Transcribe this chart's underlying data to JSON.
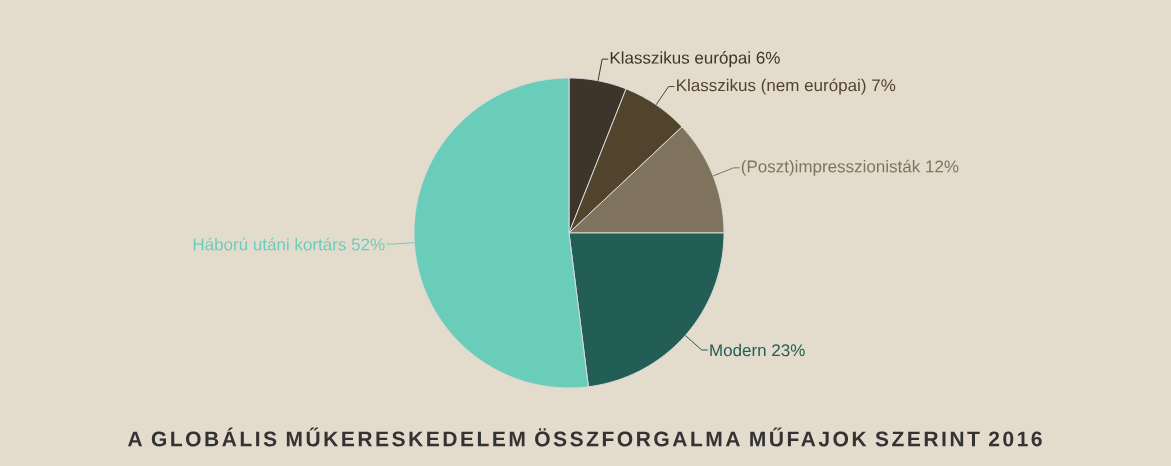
{
  "chart_data": {
    "type": "pie",
    "title": "A GLOBÁLIS MŰKERESKEDELEM ÖSSZFORGALMA MŰFAJOK SZERINT 2016",
    "categories": [
      "Klasszikus európai",
      "Klasszikus (nem európai)",
      "(Poszt)impresszionisták",
      "Modern",
      "Háború utáni kortárs"
    ],
    "values": [
      6,
      7,
      12,
      23,
      52
    ],
    "value_labels": [
      "6%",
      "7%",
      "12%",
      "23%",
      "52%"
    ],
    "colors": [
      "#3d3529",
      "#52432d",
      "#7f735e",
      "#225e55",
      "#6acdba"
    ]
  }
}
